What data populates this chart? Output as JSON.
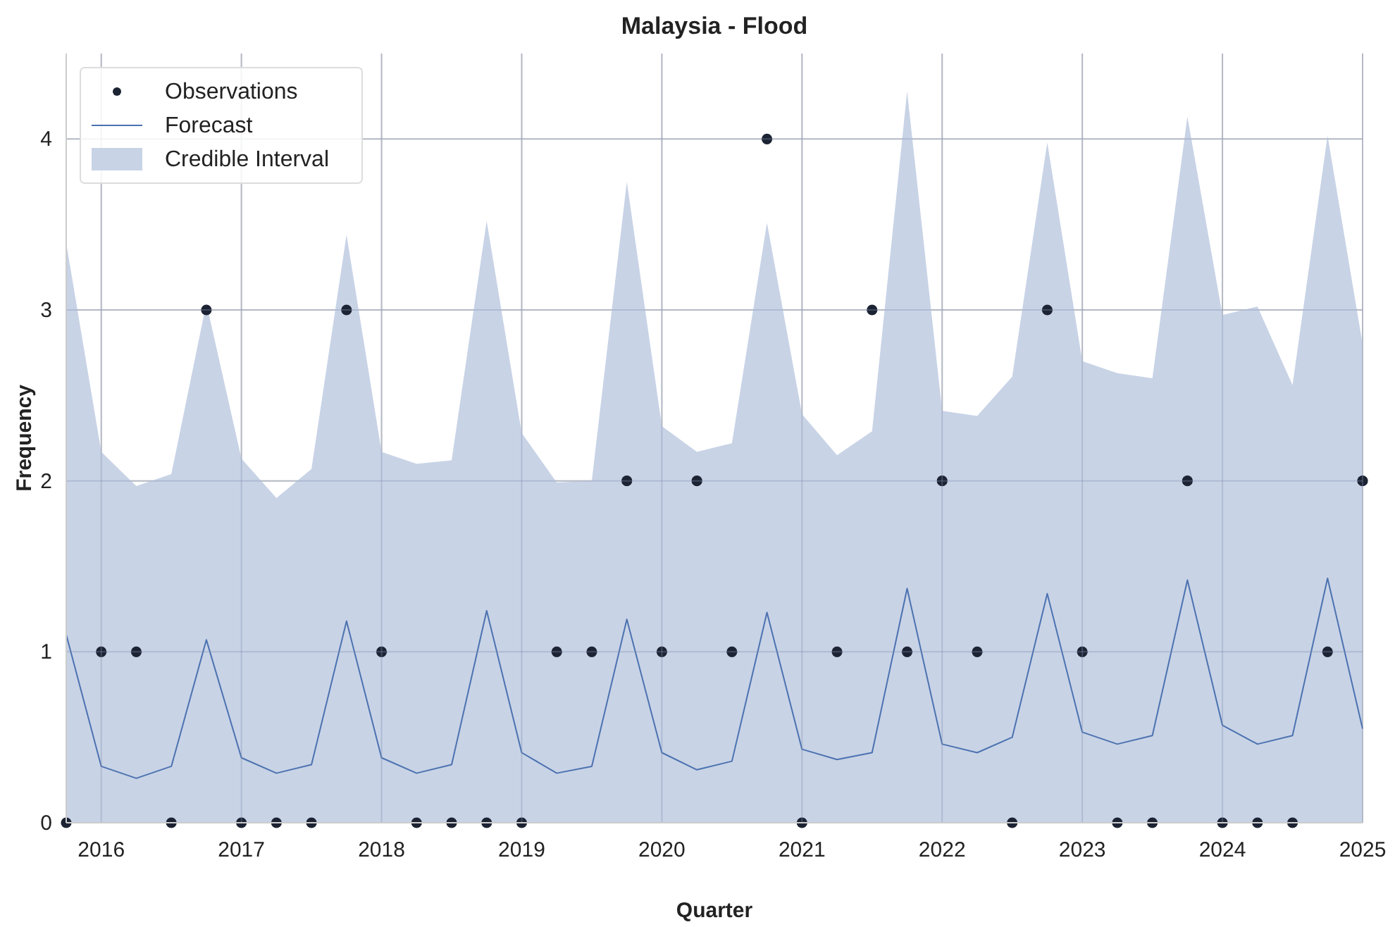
{
  "chart_data": {
    "type": "line",
    "title": "Malaysia - Flood",
    "xlabel": "Quarter",
    "ylabel": "Frequency",
    "x": [
      2015.75,
      2016,
      2016.25,
      2016.5,
      2016.75,
      2017,
      2017.25,
      2017.5,
      2017.75,
      2018,
      2018.25,
      2018.5,
      2018.75,
      2019,
      2019.25,
      2019.5,
      2019.75,
      2020,
      2020.25,
      2020.5,
      2020.75,
      2021,
      2021.25,
      2021.5,
      2021.75,
      2022,
      2022.25,
      2022.5,
      2022.75,
      2023,
      2023.25,
      2023.5,
      2023.75,
      2024,
      2024.25,
      2024.5,
      2024.75,
      2025
    ],
    "series": [
      {
        "name": "Observations",
        "type": "scatter",
        "color": "#1c2333",
        "marker": "circle",
        "values": [
          0,
          1,
          1,
          0,
          3,
          0,
          0,
          0,
          3,
          1,
          0,
          0,
          0,
          0,
          1,
          1,
          2,
          1,
          2,
          1,
          4,
          0,
          1,
          3,
          1,
          2,
          1,
          0,
          3,
          1,
          0,
          0,
          2,
          0,
          0,
          0,
          1,
          2
        ]
      },
      {
        "name": "Forecast",
        "color": "#4c72b0",
        "values": [
          1.1,
          0.33,
          0.26,
          0.33,
          1.07,
          0.38,
          0.29,
          0.34,
          1.18,
          0.38,
          0.29,
          0.34,
          1.24,
          0.41,
          0.29,
          0.33,
          1.19,
          0.41,
          0.31,
          0.36,
          1.23,
          0.43,
          0.37,
          0.41,
          1.37,
          0.46,
          0.41,
          0.5,
          1.34,
          0.53,
          0.46,
          0.51,
          1.42,
          0.57,
          0.46,
          0.51,
          1.43,
          0.55
        ]
      },
      {
        "name": "Credible Interval",
        "type": "area",
        "color": "#c8d3e6",
        "values": [
          3.39,
          2.17,
          1.97,
          2.04,
          3.04,
          2.13,
          1.9,
          2.07,
          3.44,
          2.17,
          2.1,
          2.12,
          3.52,
          2.28,
          1.99,
          2.0,
          3.75,
          2.32,
          2.17,
          2.22,
          3.51,
          2.39,
          2.15,
          2.29,
          4.28,
          2.41,
          2.38,
          2.61,
          3.98,
          2.7,
          2.63,
          2.6,
          4.13,
          2.97,
          3.02,
          2.56,
          4.02,
          2.8
        ]
      }
    ],
    "xlim": [
      2015.75,
      2025
    ],
    "xticks": [
      2016,
      2017,
      2018,
      2019,
      2020,
      2021,
      2022,
      2023,
      2024,
      2025
    ],
    "ylim": [
      0,
      4.5
    ],
    "yticks": [
      0,
      1,
      2,
      3,
      4
    ],
    "grid": true,
    "legend": "top left"
  }
}
